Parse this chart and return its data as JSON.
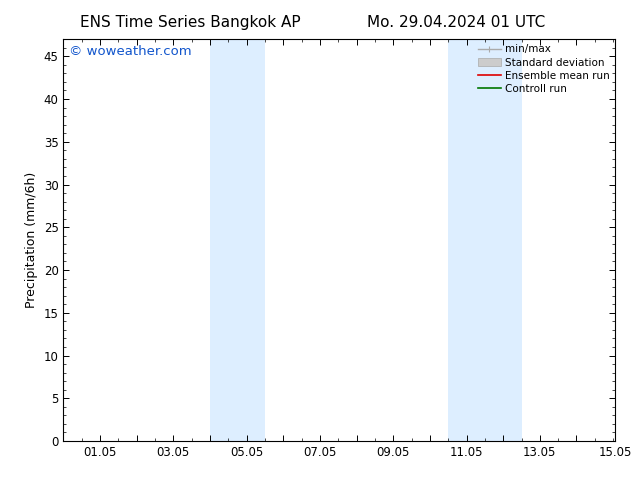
{
  "title_left": "ENS Time Series Bangkok AP",
  "title_right": "Mo. 29.04.2024 01 UTC",
  "ylabel": "Precipitation (mm/6h)",
  "xlim_left": 0.0,
  "xlim_right": 15.05,
  "ylim_bottom": 0.0,
  "ylim_top": 47.0,
  "yticks": [
    0,
    5,
    10,
    15,
    20,
    25,
    30,
    35,
    40,
    45
  ],
  "xtick_positions": [
    0,
    1,
    2,
    3,
    4,
    5,
    6,
    7,
    8,
    9,
    10,
    11,
    12,
    13,
    14,
    15.05
  ],
  "xtick_labels": [
    "",
    "01.05",
    "",
    "03.05",
    "",
    "05.05",
    "",
    "07.05",
    "",
    "09.05",
    "",
    "11.05",
    "",
    "13.05",
    "",
    "15.05"
  ],
  "shaded_regions": [
    {
      "x_start": 4.0,
      "x_end": 5.5
    },
    {
      "x_start": 10.5,
      "x_end": 12.5
    }
  ],
  "shaded_color": "#ddeeff",
  "watermark_text": "© woweather.com",
  "watermark_color": "#1155cc",
  "legend_items": [
    {
      "label": "min/max",
      "type": "hline_caps",
      "color": "#aaaaaa"
    },
    {
      "label": "Standard deviation",
      "type": "patch",
      "color": "#cccccc",
      "edgecolor": "#aaaaaa"
    },
    {
      "label": "Ensemble mean run",
      "type": "line",
      "color": "#dd0000"
    },
    {
      "label": "Controll run",
      "type": "line",
      "color": "#007700"
    }
  ],
  "background_color": "#ffffff",
  "title_fontsize": 11,
  "ylabel_fontsize": 9,
  "tick_fontsize": 8.5,
  "watermark_fontsize": 9.5,
  "legend_fontsize": 7.5
}
